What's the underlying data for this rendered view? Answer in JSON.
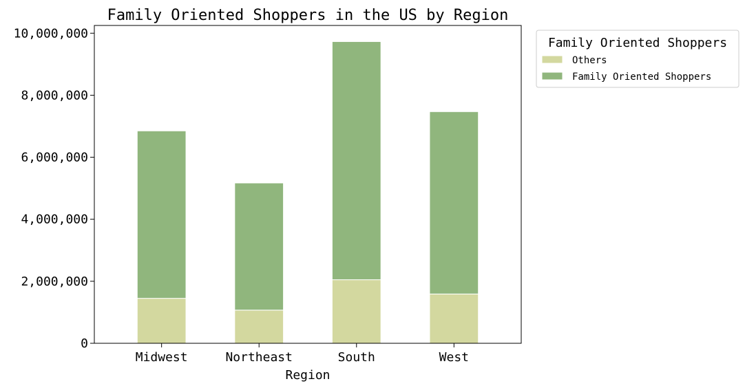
{
  "chart_data": {
    "type": "bar",
    "stacked": true,
    "title": "Family Oriented Shoppers in the US by Region",
    "xlabel": "Region",
    "ylabel": "",
    "categories": [
      "Midwest",
      "Northeast",
      "South",
      "West"
    ],
    "series": [
      {
        "name": "Others",
        "color": "#d3d89f",
        "values": [
          1450000,
          1070000,
          2050000,
          1590000
        ]
      },
      {
        "name": "Family Oriented Shoppers",
        "color": "#90b67d",
        "values": [
          5400000,
          4100000,
          7680000,
          5880000
        ]
      }
    ],
    "ylim": [
      0,
      10250000
    ],
    "yticks": [
      0,
      2000000,
      4000000,
      6000000,
      8000000,
      10000000
    ],
    "ytick_labels": [
      "0",
      "2,000,000",
      "4,000,000",
      "6,000,000",
      "8,000,000",
      "10,000,000"
    ],
    "grid": false,
    "legend": {
      "title": "Family Oriented Shoppers",
      "placement": "outside-top-right"
    }
  }
}
